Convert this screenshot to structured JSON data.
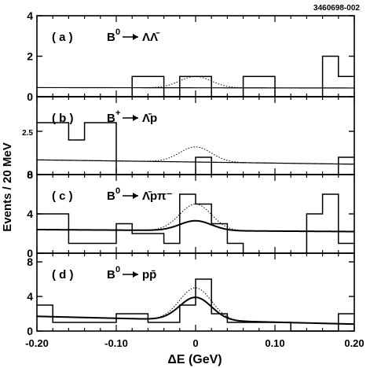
{
  "figure_id": "3460698-002",
  "ylabel": "Events / 20 MeV",
  "xlabel": "ΔE (GeV)",
  "x_ticks": [
    "-0.20",
    "-0.10",
    "0",
    "0.10",
    "0.20"
  ],
  "chart_data": [
    {
      "type": "histogram",
      "panel": "(a)",
      "decay": {
        "parent": "B",
        "charge": "0",
        "products": "ΛΛ̄"
      },
      "xlim": [
        -0.2,
        0.2
      ],
      "ylim": [
        0,
        4
      ],
      "yticks": [
        0,
        2,
        4
      ],
      "ytick_labels": [
        "0",
        "2",
        "4"
      ],
      "bin_edges": [
        -0.2,
        -0.18,
        -0.16,
        -0.14,
        -0.12,
        -0.1,
        -0.08,
        -0.06,
        -0.04,
        -0.02,
        0.0,
        0.02,
        0.04,
        0.06,
        0.08,
        0.1,
        0.12,
        0.14,
        0.16,
        0.18,
        0.2
      ],
      "counts": [
        0,
        0,
        0,
        0,
        0,
        0,
        1,
        1,
        0,
        1,
        1,
        0,
        0,
        1,
        1,
        0,
        0,
        0,
        2,
        1
      ],
      "background_fit": [
        0.45,
        0.43
      ],
      "signal_peak": 1.0,
      "fit_peak": 0
    },
    {
      "type": "histogram",
      "panel": "(b)",
      "decay": {
        "parent": "B",
        "charge": "+",
        "products": "Λ̄p"
      },
      "xlim": [
        -0.2,
        0.2
      ],
      "ylim": [
        0,
        4.5
      ],
      "yticks": [
        0,
        2.5
      ],
      "ytick_labels": [
        "0",
        "2.5"
      ],
      "bin_edges": [
        -0.2,
        -0.18,
        -0.16,
        -0.14,
        -0.12,
        -0.1,
        -0.08,
        -0.06,
        -0.04,
        -0.02,
        0.0,
        0.02,
        0.04,
        0.06,
        0.08,
        0.1,
        0.12,
        0.14,
        0.16,
        0.18,
        0.2
      ],
      "counts": [
        3,
        3,
        2,
        3,
        3,
        0,
        0,
        0,
        0,
        0,
        1,
        0,
        0,
        0,
        0,
        0,
        0,
        0,
        0,
        1
      ],
      "background_fit": [
        0.85,
        0.6
      ],
      "signal_peak": 1.6,
      "fit_peak": 0
    },
    {
      "type": "histogram",
      "panel": "(c)",
      "decay": {
        "parent": "B",
        "charge": "0",
        "products": "Λ̄pπ⁻"
      },
      "xlim": [
        -0.2,
        0.2
      ],
      "ylim": [
        0,
        8
      ],
      "yticks": [
        0,
        4,
        8
      ],
      "ytick_labels": [
        "0",
        "4",
        "8"
      ],
      "bin_edges": [
        -0.2,
        -0.18,
        -0.16,
        -0.14,
        -0.12,
        -0.1,
        -0.08,
        -0.06,
        -0.04,
        -0.02,
        0.0,
        0.02,
        0.04,
        0.06,
        0.08,
        0.1,
        0.12,
        0.14,
        0.16,
        0.18,
        0.2
      ],
      "counts": [
        4,
        4,
        1,
        1,
        1,
        3,
        2,
        2,
        1,
        6,
        5,
        3,
        1,
        0,
        0,
        0,
        0,
        4,
        6,
        1
      ],
      "background_fit": [
        2.4,
        2.2
      ],
      "signal_peak": 5.0,
      "fit_peak": 3.3
    },
    {
      "type": "histogram",
      "panel": "(d)",
      "decay": {
        "parent": "B",
        "charge": "0",
        "products": "pp̄"
      },
      "xlim": [
        -0.2,
        0.2
      ],
      "ylim": [
        0,
        9
      ],
      "yticks": [
        0,
        4,
        8
      ],
      "ytick_labels": [
        "0",
        "4",
        "8"
      ],
      "bin_edges": [
        -0.2,
        -0.18,
        -0.16,
        -0.14,
        -0.12,
        -0.1,
        -0.08,
        -0.06,
        -0.04,
        -0.02,
        0.0,
        0.02,
        0.04,
        0.06,
        0.08,
        0.1,
        0.12,
        0.14,
        0.16,
        0.18,
        0.2
      ],
      "counts": [
        3,
        1,
        1,
        1,
        1,
        2,
        2,
        1,
        1,
        3,
        6,
        2,
        1,
        1,
        1,
        1,
        0,
        0,
        0,
        2
      ],
      "background_fit": [
        1.7,
        0.8
      ],
      "signal_peak": 5.0,
      "fit_peak": 3.9
    }
  ]
}
